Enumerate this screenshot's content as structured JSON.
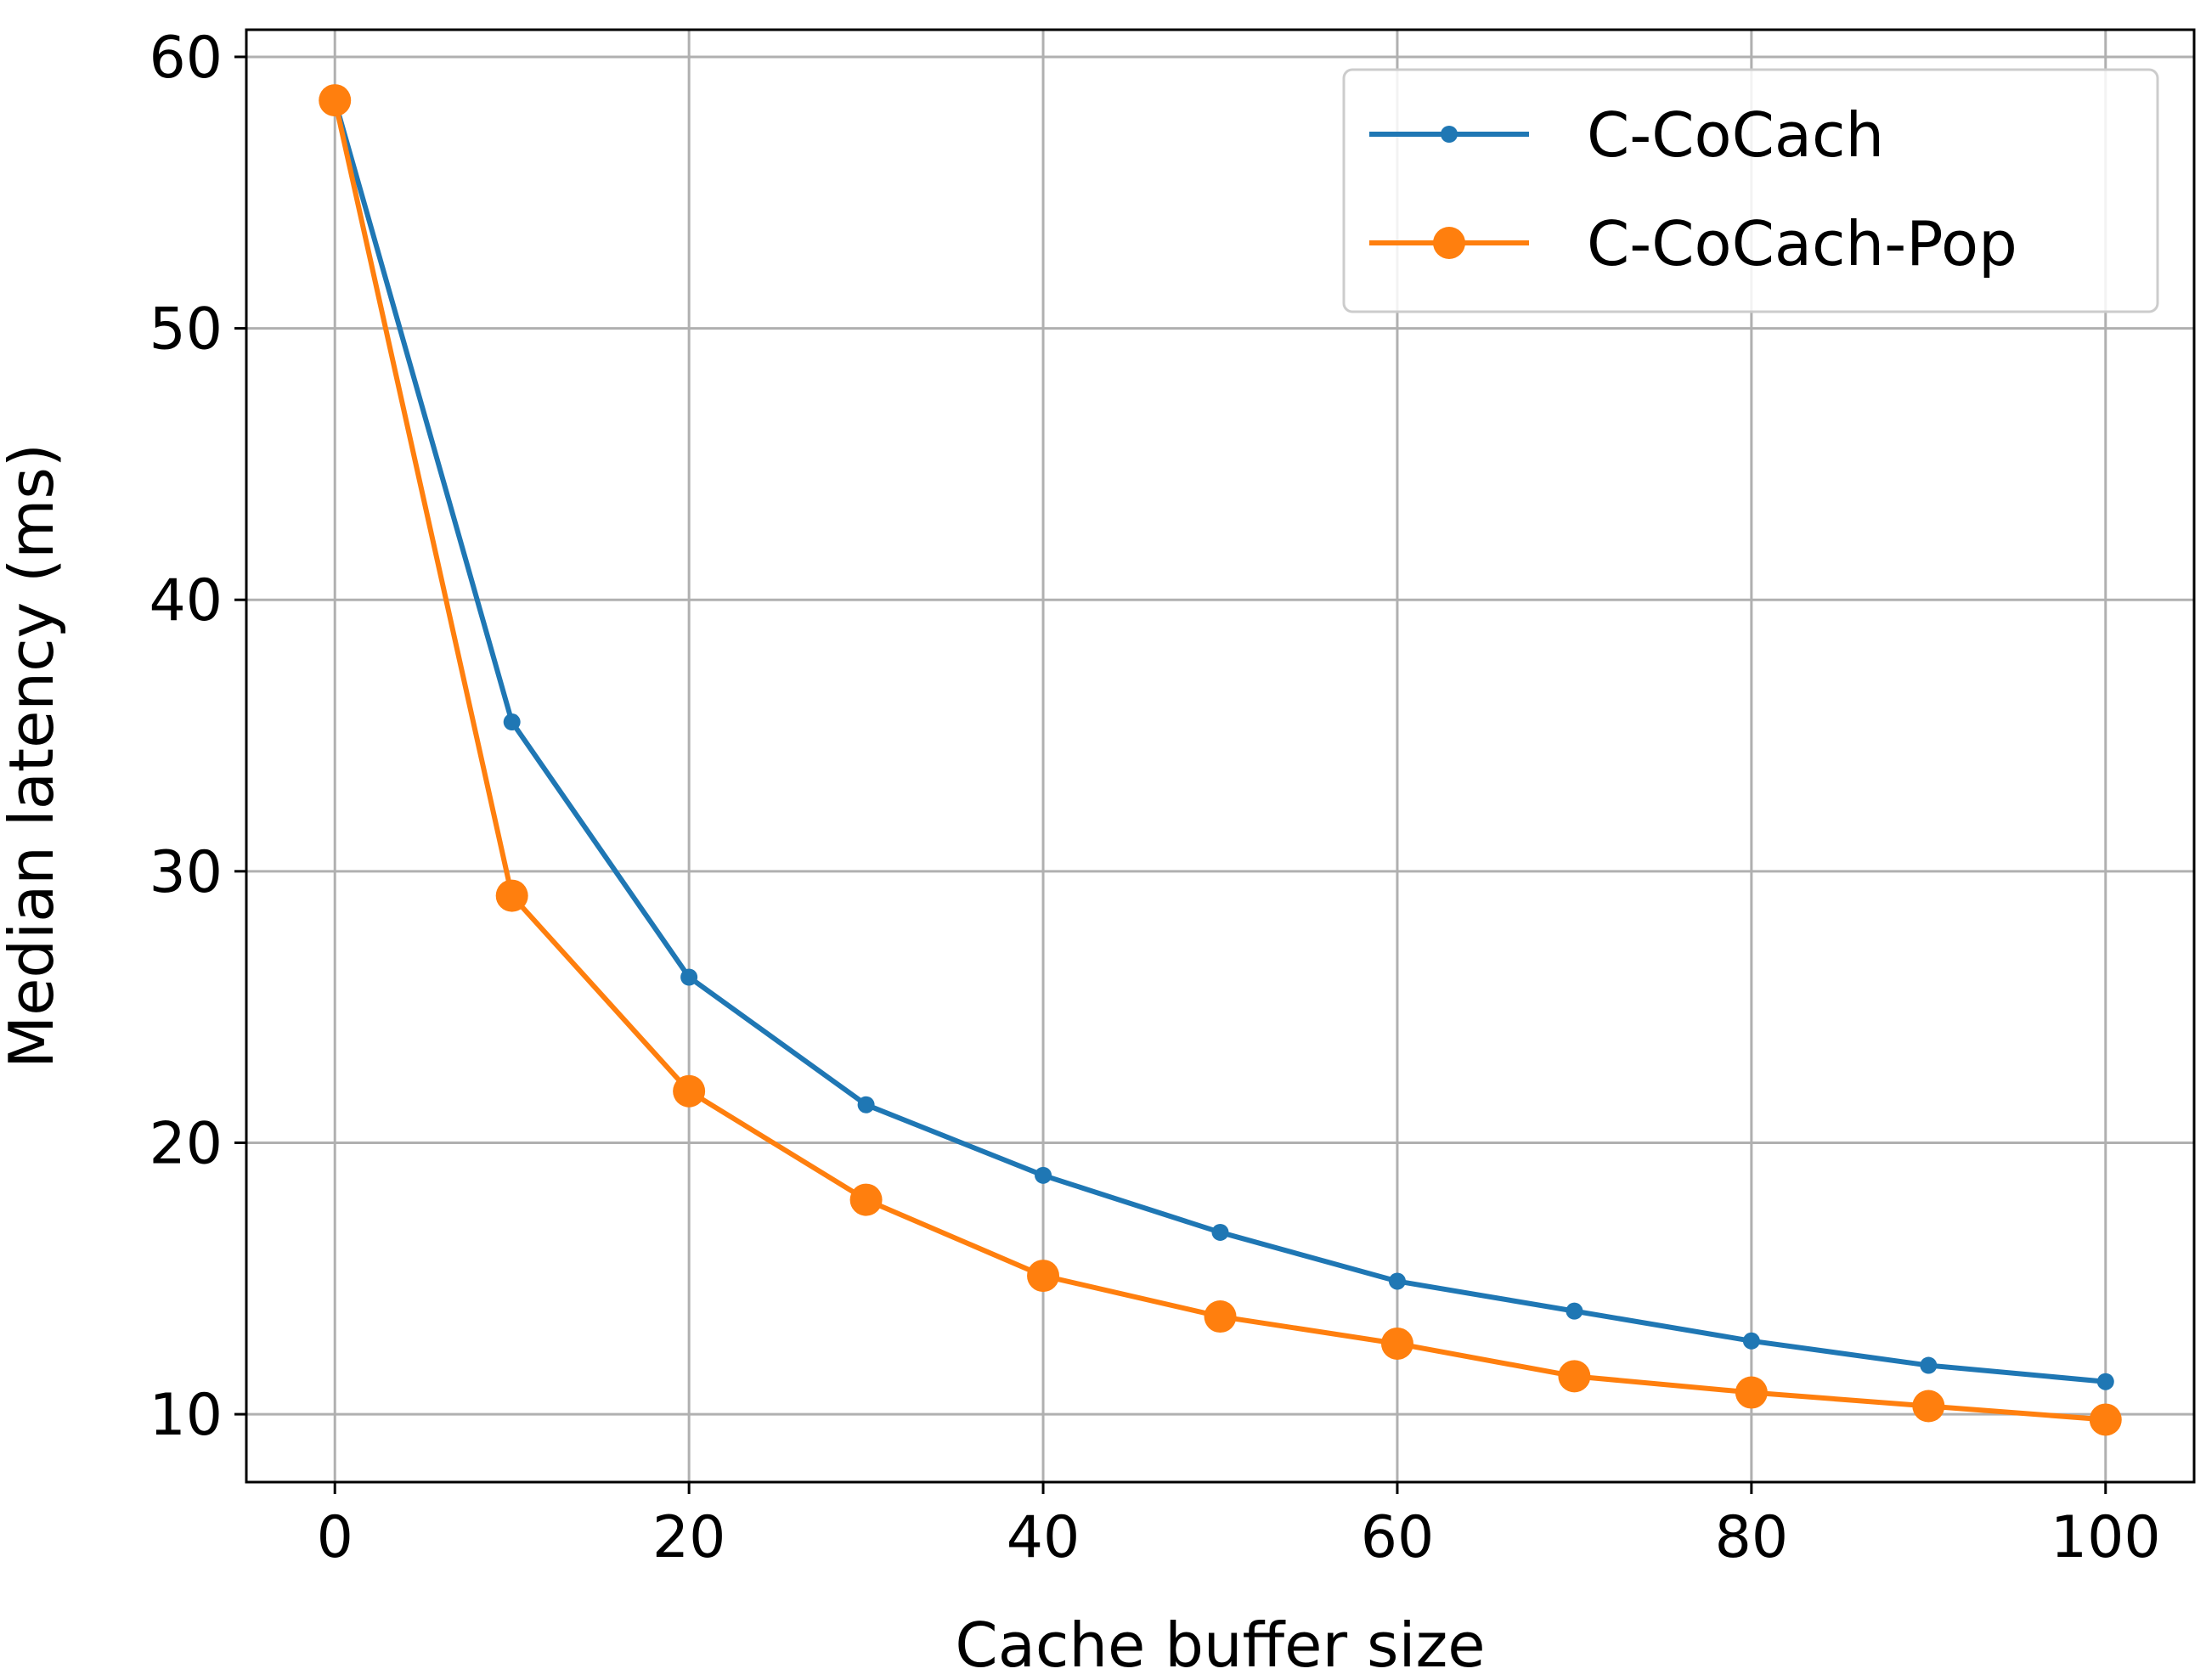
{
  "chart_data": {
    "type": "line",
    "title": "",
    "xlabel": "Cache buffer size",
    "ylabel": "Median latency (ms)",
    "xlim": [
      -5,
      105
    ],
    "ylim": [
      7.5,
      61
    ],
    "xticks": [
      0,
      20,
      40,
      60,
      80,
      100
    ],
    "yticks": [
      10,
      20,
      30,
      40,
      50,
      60
    ],
    "xtick_labels": [
      "0",
      "20",
      "40",
      "60",
      "80",
      "100"
    ],
    "ytick_labels": [
      "10",
      "20",
      "30",
      "40",
      "50",
      "60"
    ],
    "grid": true,
    "legend_position": "top-right",
    "x": [
      0,
      10,
      20,
      30,
      40,
      50,
      60,
      70,
      80,
      90,
      100
    ],
    "series": [
      {
        "name": "C-CoCach",
        "color": "#1f77b4",
        "marker": "small-dot",
        "values": [
          58.4,
          35.5,
          26.1,
          21.4,
          18.8,
          16.7,
          14.9,
          13.8,
          12.7,
          11.8,
          11.2
        ]
      },
      {
        "name": "C-CoCach-Pop",
        "color": "#ff7f0e",
        "marker": "large-dot",
        "values": [
          58.4,
          29.1,
          21.9,
          17.9,
          15.1,
          13.6,
          12.6,
          11.4,
          10.8,
          10.3,
          9.8
        ]
      }
    ]
  }
}
